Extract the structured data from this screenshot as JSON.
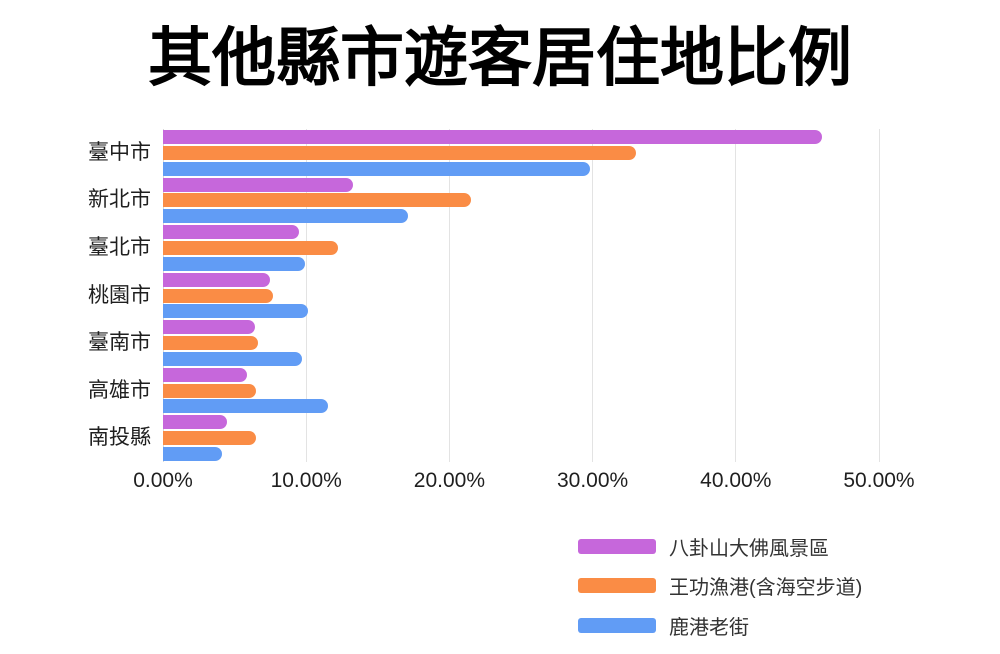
{
  "title": "其他縣市遊客居住地比例",
  "chart_data": {
    "type": "bar",
    "orientation": "horizontal",
    "title": "其他縣市遊客居住地比例",
    "categories": [
      "臺中市",
      "新北市",
      "臺北市",
      "桃園市",
      "臺南市",
      "高雄市",
      "南投縣"
    ],
    "series": [
      {
        "name": "八卦山大佛風景區",
        "color": "#C667DB",
        "values": [
          46.0,
          13.3,
          9.5,
          7.5,
          6.4,
          5.9,
          4.5
        ]
      },
      {
        "name": "王功漁港(含海空步道)",
        "color": "#FA8C45",
        "values": [
          33.0,
          21.5,
          12.2,
          7.7,
          6.6,
          6.5,
          6.5
        ]
      },
      {
        "name": "鹿港老街",
        "color": "#619CF5",
        "values": [
          29.8,
          17.1,
          9.9,
          10.1,
          9.7,
          11.5,
          4.1
        ]
      }
    ],
    "x_ticks": [
      "0.00%",
      "10.00%",
      "20.00%",
      "30.00%",
      "40.00%",
      "50.00%"
    ],
    "x_tick_values": [
      0,
      10,
      20,
      30,
      40,
      50
    ],
    "xlim": [
      0,
      50
    ],
    "grid": true,
    "legend_position": "bottom-right",
    "unit": "percent"
  },
  "colors": {
    "background": "#ffffff",
    "gridline": "#e3e3e3",
    "axis_line": "#d8d8d8",
    "title_text": "#000000",
    "label_text": "#1f1f1f",
    "legend_text": "#333333"
  }
}
